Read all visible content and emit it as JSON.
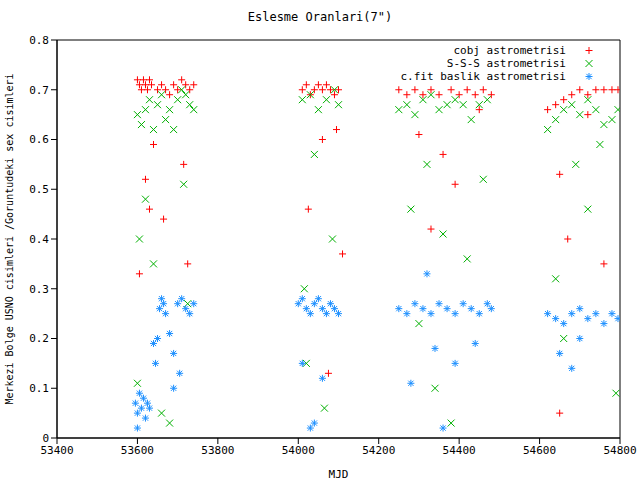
{
  "chart_data": {
    "type": "scatter",
    "title": "Eslesme Oranlari(7\")",
    "x_label": "MJD",
    "y_label": "Merkezi Bolge USNO cisimleri /Goruntudeki sex cisimleri",
    "xlim": [
      53400,
      54800
    ],
    "xticks": [
      53400,
      53600,
      53800,
      54000,
      54200,
      54400,
      54600,
      54800
    ],
    "ylim": [
      0,
      0.8
    ],
    "yticks": [
      0,
      0.1,
      0.2,
      0.3,
      0.4,
      0.5,
      0.6,
      0.7,
      0.8
    ],
    "grid": false,
    "legend": "upper right",
    "series": [
      {
        "name": "cobj astrometrisi",
        "color": "#ff0000",
        "marker": "plus",
        "x": [
          53600,
          53605,
          53610,
          53615,
          53620,
          53625,
          53630,
          53635,
          53605,
          53620,
          53630,
          53640,
          53650,
          53660,
          53665,
          53670,
          53680,
          53690,
          53700,
          53710,
          53720,
          53730,
          53740,
          53725,
          53715,
          54010,
          54020,
          54030,
          54040,
          54050,
          54060,
          54070,
          54080,
          54090,
          54100,
          54025,
          54060,
          54075,
          54095,
          54110,
          54250,
          54270,
          54290,
          54310,
          54330,
          54350,
          54360,
          54380,
          54400,
          54420,
          54440,
          54460,
          54480,
          54300,
          54330,
          54390,
          54450,
          54620,
          54640,
          54660,
          54680,
          54700,
          54720,
          54740,
          54760,
          54780,
          54795,
          54650,
          54670,
          54720,
          54760,
          54650
        ],
        "values": [
          0.72,
          0.71,
          0.7,
          0.72,
          0.71,
          0.7,
          0.72,
          0.71,
          0.33,
          0.52,
          0.46,
          0.59,
          0.7,
          0.71,
          0.44,
          0.7,
          0.69,
          0.71,
          0.7,
          0.72,
          0.71,
          0.7,
          0.71,
          0.35,
          0.55,
          0.7,
          0.71,
          0.69,
          0.7,
          0.71,
          0.7,
          0.71,
          0.7,
          0.69,
          0.7,
          0.46,
          0.6,
          0.13,
          0.62,
          0.37,
          0.7,
          0.69,
          0.7,
          0.69,
          0.7,
          0.69,
          0.57,
          0.7,
          0.69,
          0.7,
          0.69,
          0.7,
          0.69,
          0.61,
          0.42,
          0.51,
          0.66,
          0.66,
          0.67,
          0.68,
          0.69,
          0.7,
          0.69,
          0.7,
          0.7,
          0.7,
          0.7,
          0.53,
          0.4,
          0.65,
          0.35,
          0.05
        ]
      },
      {
        "name": "S-S-S astrometrisi",
        "color": "#00b000",
        "marker": "cross",
        "x": [
          53600,
          53610,
          53620,
          53630,
          53640,
          53650,
          53660,
          53670,
          53680,
          53690,
          53700,
          53710,
          53720,
          53730,
          53740,
          53605,
          53620,
          53640,
          53660,
          53680,
          53715,
          53725,
          53600,
          54010,
          54030,
          54050,
          54070,
          54090,
          54100,
          54015,
          54040,
          54065,
          54085,
          54020,
          54250,
          54270,
          54290,
          54310,
          54330,
          54350,
          54370,
          54390,
          54410,
          54430,
          54450,
          54470,
          54280,
          54300,
          54320,
          54340,
          54360,
          54380,
          54420,
          54460,
          54620,
          54640,
          54660,
          54680,
          54700,
          54720,
          54740,
          54760,
          54780,
          54795,
          54640,
          54660,
          54690,
          54720,
          54750,
          54790
        ],
        "values": [
          0.65,
          0.63,
          0.66,
          0.68,
          0.62,
          0.67,
          0.69,
          0.64,
          0.66,
          0.62,
          0.68,
          0.7,
          0.69,
          0.67,
          0.66,
          0.4,
          0.48,
          0.35,
          0.05,
          0.03,
          0.51,
          0.27,
          0.11,
          0.68,
          0.69,
          0.66,
          0.68,
          0.7,
          0.67,
          0.3,
          0.57,
          0.06,
          0.4,
          0.15,
          0.66,
          0.67,
          0.65,
          0.68,
          0.69,
          0.66,
          0.67,
          0.68,
          0.67,
          0.64,
          0.67,
          0.68,
          0.46,
          0.23,
          0.55,
          0.1,
          0.41,
          0.03,
          0.36,
          0.52,
          0.62,
          0.64,
          0.66,
          0.67,
          0.65,
          0.68,
          0.66,
          0.63,
          0.64,
          0.66,
          0.32,
          0.2,
          0.55,
          0.46,
          0.59,
          0.09
        ]
      },
      {
        "name": "c.fit baslik astrometrisi",
        "color": "#1e90ff",
        "marker": "star",
        "x": [
          53595,
          53600,
          53605,
          53610,
          53615,
          53620,
          53625,
          53630,
          53600,
          53640,
          53645,
          53650,
          53655,
          53660,
          53665,
          53670,
          53680,
          53690,
          53700,
          53710,
          53720,
          53730,
          53740,
          53690,
          53705,
          54000,
          54010,
          54020,
          54030,
          54040,
          54050,
          54060,
          54070,
          54080,
          54090,
          54100,
          54030,
          54040,
          54060,
          54010,
          54250,
          54270,
          54290,
          54310,
          54330,
          54350,
          54370,
          54390,
          54410,
          54430,
          54450,
          54470,
          54480,
          54280,
          54320,
          54340,
          54360,
          54390,
          54440,
          54620,
          54640,
          54660,
          54680,
          54700,
          54720,
          54740,
          54760,
          54780,
          54795,
          54650,
          54680,
          54700
        ],
        "values": [
          0.07,
          0.05,
          0.09,
          0.06,
          0.08,
          0.04,
          0.07,
          0.06,
          0.02,
          0.19,
          0.15,
          0.2,
          0.26,
          0.28,
          0.27,
          0.25,
          0.21,
          0.17,
          0.27,
          0.28,
          0.26,
          0.25,
          0.27,
          0.1,
          0.13,
          0.27,
          0.28,
          0.26,
          0.25,
          0.27,
          0.28,
          0.26,
          0.25,
          0.27,
          0.26,
          0.25,
          0.02,
          0.03,
          0.12,
          0.15,
          0.26,
          0.25,
          0.27,
          0.26,
          0.25,
          0.27,
          0.26,
          0.25,
          0.27,
          0.26,
          0.25,
          0.27,
          0.26,
          0.11,
          0.33,
          0.18,
          0.02,
          0.15,
          0.19,
          0.25,
          0.24,
          0.23,
          0.25,
          0.26,
          0.24,
          0.25,
          0.23,
          0.25,
          0.24,
          0.17,
          0.14,
          0.2
        ]
      }
    ]
  }
}
